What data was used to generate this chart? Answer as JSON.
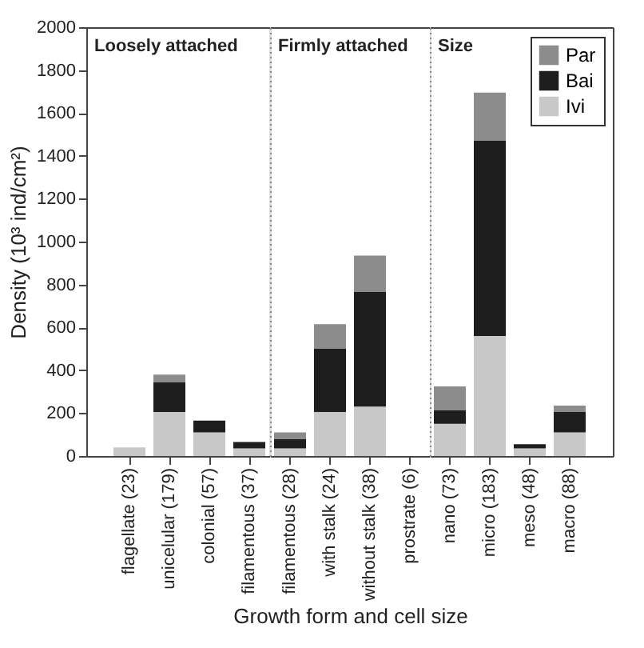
{
  "chart_data": [
    {
      "type": "bar",
      "stacked": true,
      "title": "Loosely attached",
      "ylabel": "Density (10³ ind/cm²)",
      "categories": [
        "flagellate (23)",
        "unicelular (179)",
        "colonial (57)",
        "filamentous (37)"
      ],
      "series": [
        {
          "color": "#c8c8c8",
          "values": [
            40,
            205,
            110,
            35
          ]
        },
        {
          "color": "#1e1e1e",
          "values": [
            null,
            140,
            55,
            30
          ]
        },
        {
          "color": "#8c8c8c",
          "values": [
            null,
            35,
            null,
            null
          ]
        }
      ],
      "ylim": [
        0,
        2000
      ],
      "yticks": [
        0,
        200,
        400,
        600,
        800,
        1000,
        1200,
        1400,
        1600,
        1800,
        2000
      ],
      "grid": false
    },
    {
      "type": "bar",
      "stacked": true,
      "title": "Firmly attached",
      "xlabel": "Growth form and cell size",
      "categories": [
        "filamentous (28)",
        "with stalk (24)",
        "without stalk (38)",
        "prostrate (6)"
      ],
      "series": [
        {
          "color": "#c8c8c8",
          "values": [
            35,
            205,
            230,
            null
          ]
        },
        {
          "color": "#1e1e1e",
          "values": [
            45,
            295,
            535,
            null
          ]
        },
        {
          "color": "#8c8c8c",
          "values": [
            30,
            115,
            170,
            null
          ]
        }
      ],
      "ylim": [
        0,
        2000
      ],
      "yticks": [
        0,
        200,
        400,
        600,
        800,
        1000,
        1200,
        1400,
        1600,
        1800,
        2000
      ],
      "tick_labels": "x",
      "grid": false
    },
    {
      "type": "bar",
      "stacked": true,
      "title": "Size",
      "categories": [
        "nano (73)",
        "micro (183)",
        "meso (48)",
        "macro (88)"
      ],
      "series": [
        {
          "name": "Ivi",
          "color": "#c8c8c8",
          "values": [
            150,
            560,
            35,
            110
          ]
        },
        {
          "name": "Bai",
          "color": "#1e1e1e",
          "values": [
            65,
            910,
            20,
            95
          ]
        },
        {
          "name": "Par",
          "color": "#8c8c8c",
          "values": [
            110,
            225,
            null,
            30
          ]
        }
      ],
      "ylim": [
        0,
        2000
      ],
      "yticks": [
        0,
        200,
        400,
        600,
        800,
        1000,
        1200,
        1400,
        1600,
        1800,
        2000
      ],
      "tick_labels": "x",
      "legend": "top right",
      "grid": false
    }
  ]
}
